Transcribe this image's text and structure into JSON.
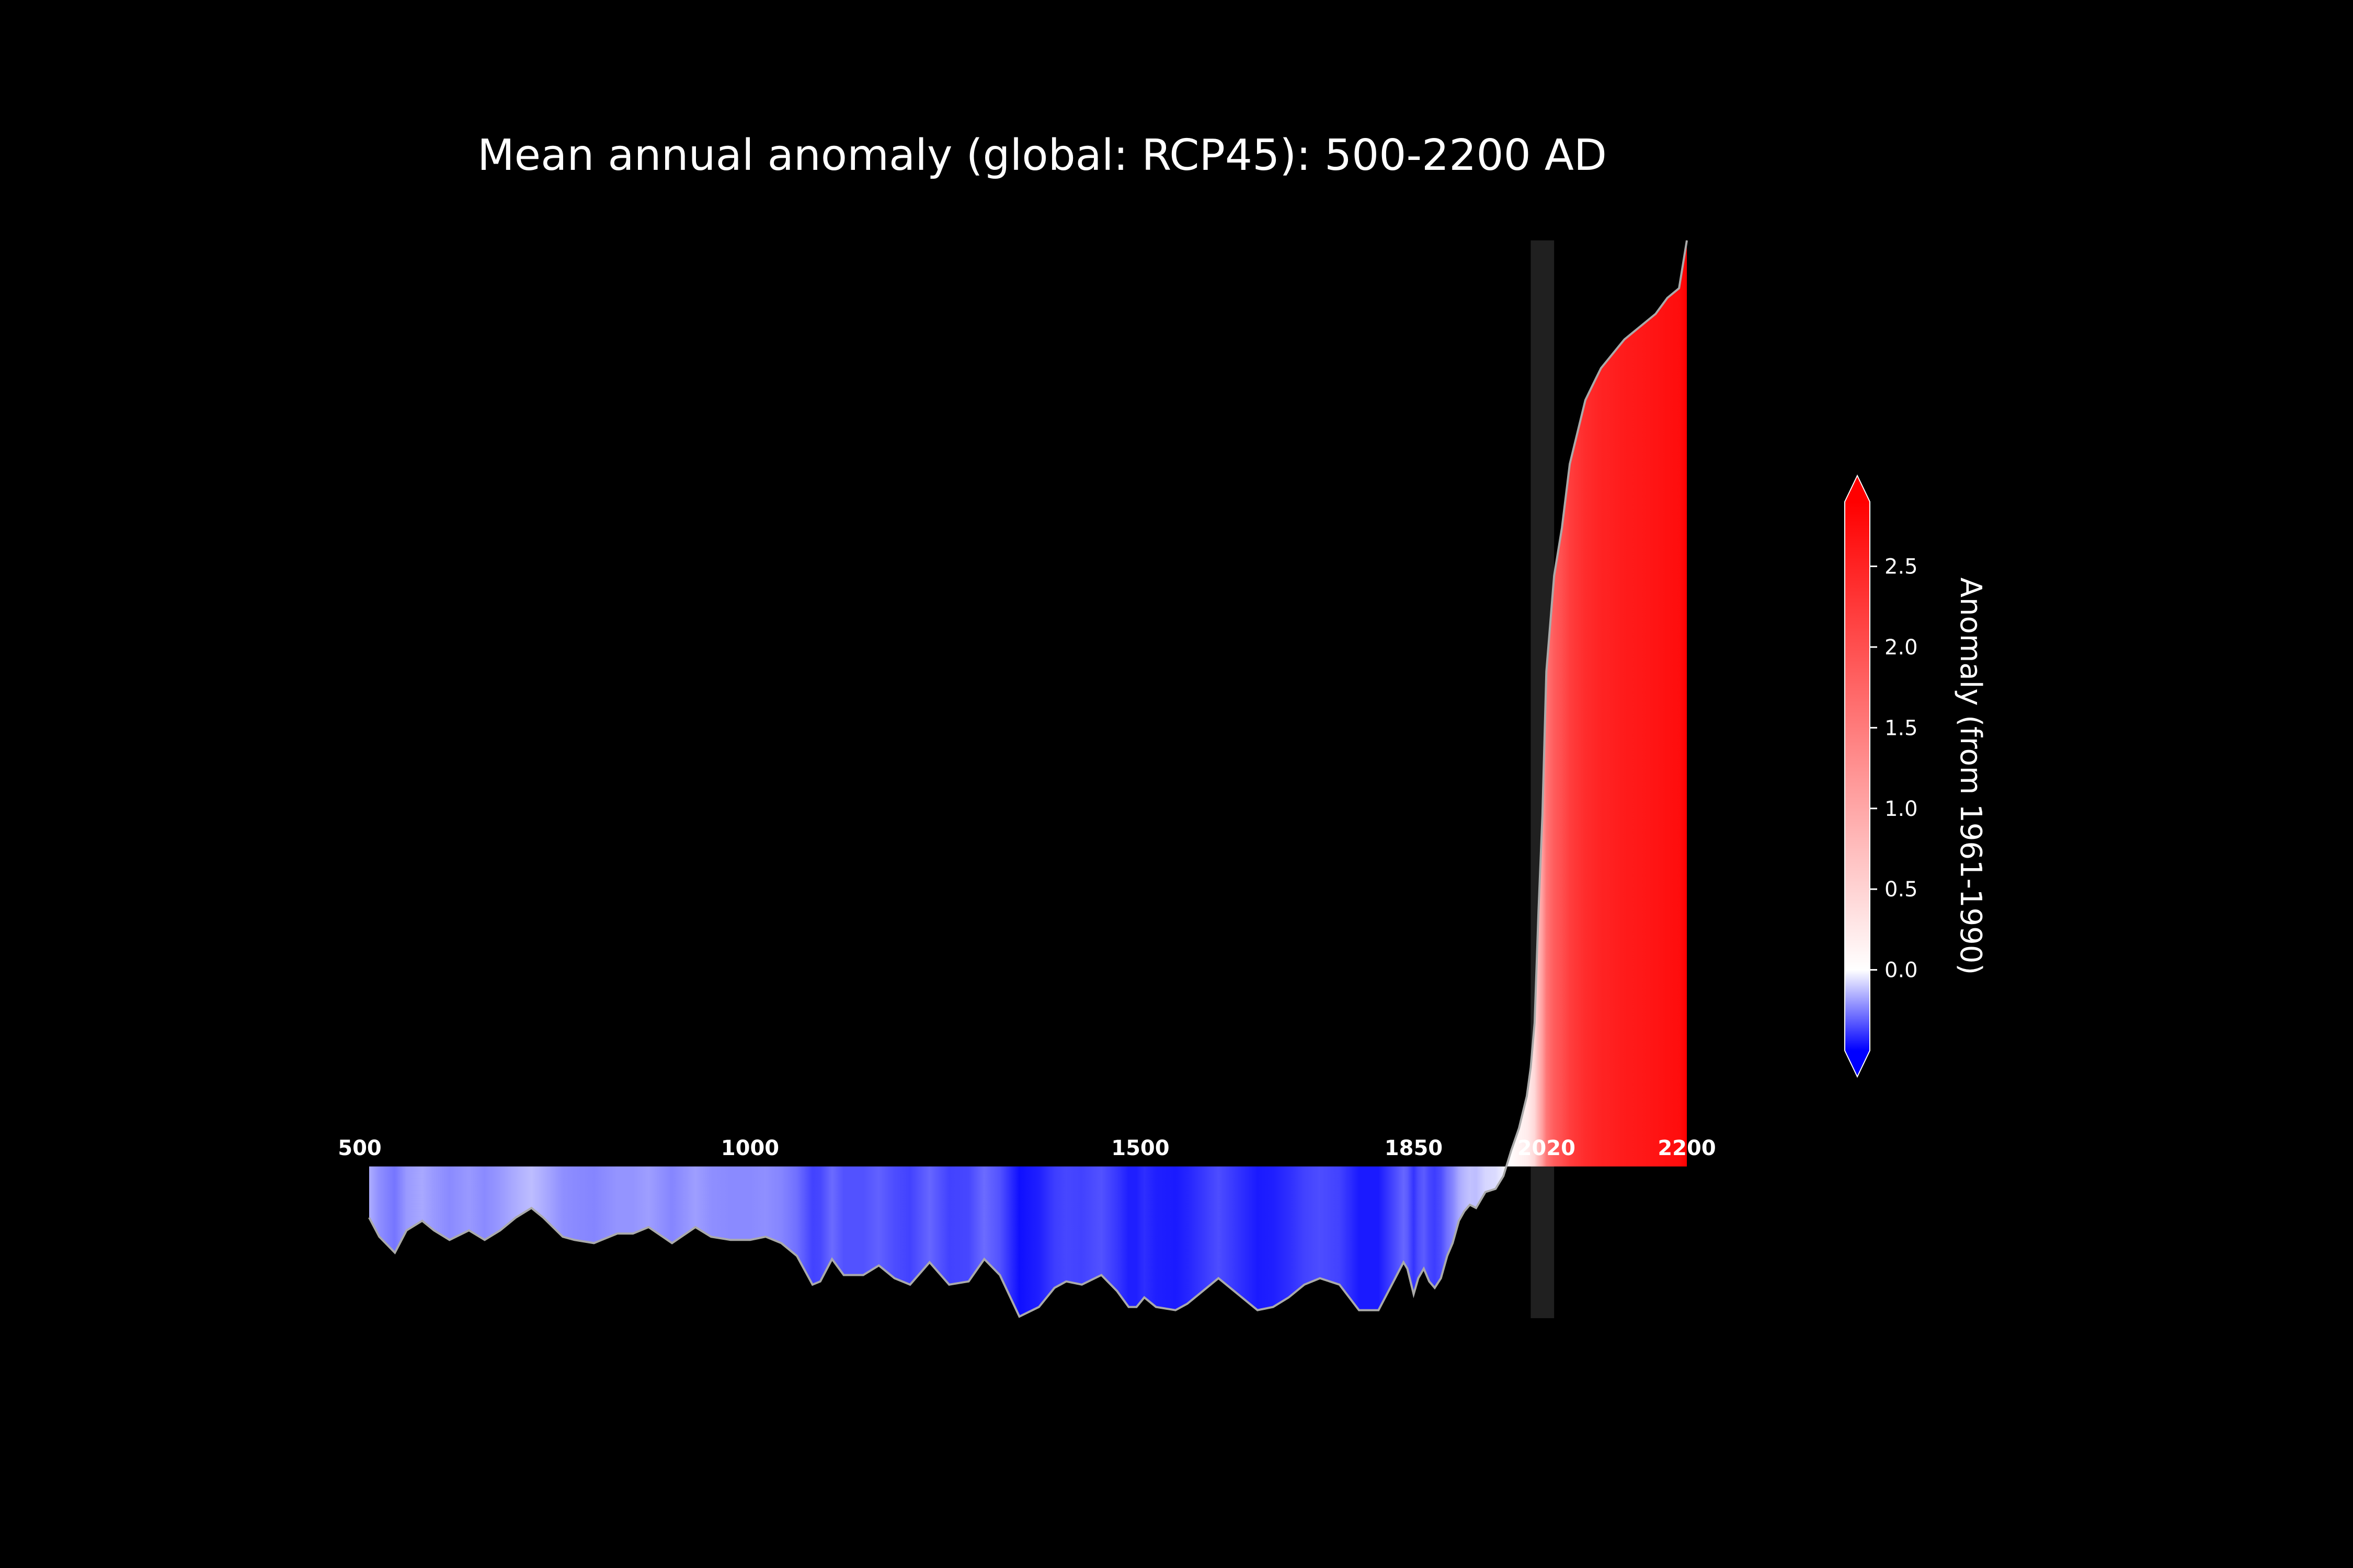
{
  "chart_data": {
    "type": "area",
    "title": "Mean annual anomaly (global: RCP45): 500-2200 AD",
    "xlabel": "",
    "ylabel": "",
    "grid": false,
    "x_ticks": [
      {
        "value": 500,
        "label": "500"
      },
      {
        "value": 1000,
        "label": "1000"
      },
      {
        "value": 1500,
        "label": "1500"
      },
      {
        "value": 1850,
        "label": "1850"
      },
      {
        "value": 2020,
        "label": "2020"
      },
      {
        "value": 2200,
        "label": "2200"
      }
    ],
    "xlim": [
      500,
      2200
    ],
    "ylim": [
      -0.475,
      2.9
    ],
    "baseline": 0.0,
    "highlight_band": [
      2000,
      2030
    ],
    "colorbar": {
      "label": "Anomaly (from 1961-1990)",
      "range": [
        -0.5,
        2.9
      ],
      "ticks": [
        {
          "value": 0.0,
          "label": "0.0"
        },
        {
          "value": 0.5,
          "label": "0.5"
        },
        {
          "value": 1.0,
          "label": "1.0"
        },
        {
          "value": 1.5,
          "label": "1.5"
        },
        {
          "value": 2.0,
          "label": "2.0"
        },
        {
          "value": 2.5,
          "label": "2.5"
        }
      ],
      "colors": {
        "negative": "#0000ff",
        "zero": "#ffffff",
        "positive": "#ff0000"
      }
    },
    "series": [
      {
        "x": [
          512,
          525,
          545,
          560,
          580,
          595,
          615,
          640,
          660,
          680,
          700,
          720,
          735,
          760,
          775,
          800,
          830,
          850,
          870,
          900,
          930,
          950,
          975,
          1000,
          1020,
          1040,
          1060,
          1080,
          1090,
          1105,
          1120,
          1145,
          1165,
          1185,
          1205,
          1230,
          1255,
          1280,
          1300,
          1320,
          1345,
          1370,
          1390,
          1405,
          1425,
          1450,
          1470,
          1485,
          1495,
          1505,
          1520,
          1545,
          1560,
          1575,
          1600,
          1625,
          1650,
          1670,
          1690,
          1710,
          1730,
          1755,
          1780,
          1805,
          1820,
          1837,
          1842,
          1850,
          1856,
          1863,
          1870,
          1877,
          1885,
          1893,
          1900,
          1908,
          1915,
          1922,
          1930,
          1942,
          1955,
          1965,
          1975,
          1985,
          1995,
          2000,
          2005,
          2010,
          2015,
          2020,
          2030,
          2040,
          2050,
          2060,
          2070,
          2080,
          2090,
          2100,
          2110,
          2120,
          2140,
          2160,
          2175,
          2190,
          2200
        ],
        "y": [
          -0.16,
          -0.22,
          -0.27,
          -0.2,
          -0.17,
          -0.2,
          -0.23,
          -0.2,
          -0.23,
          -0.2,
          -0.16,
          -0.13,
          -0.16,
          -0.22,
          -0.23,
          -0.24,
          -0.21,
          -0.21,
          -0.19,
          -0.24,
          -0.19,
          -0.22,
          -0.23,
          -0.23,
          -0.22,
          -0.24,
          -0.28,
          -0.37,
          -0.36,
          -0.29,
          -0.34,
          -0.34,
          -0.31,
          -0.35,
          -0.37,
          -0.3,
          -0.37,
          -0.36,
          -0.29,
          -0.34,
          -0.47,
          -0.44,
          -0.38,
          -0.36,
          -0.37,
          -0.34,
          -0.39,
          -0.44,
          -0.44,
          -0.41,
          -0.44,
          -0.45,
          -0.43,
          -0.4,
          -0.35,
          -0.4,
          -0.45,
          -0.44,
          -0.41,
          -0.37,
          -0.35,
          -0.37,
          -0.45,
          -0.45,
          -0.38,
          -0.3,
          -0.32,
          -0.4,
          -0.35,
          -0.32,
          -0.36,
          -0.38,
          -0.35,
          -0.28,
          -0.24,
          -0.17,
          -0.14,
          -0.12,
          -0.13,
          -0.08,
          -0.07,
          -0.03,
          0.05,
          0.12,
          0.22,
          0.31,
          0.45,
          0.8,
          1.1,
          1.55,
          1.85,
          2.0,
          2.2,
          2.3,
          2.4,
          2.45,
          2.5,
          2.53,
          2.56,
          2.59,
          2.63,
          2.67,
          2.72,
          2.75,
          2.9
        ]
      }
    ]
  }
}
